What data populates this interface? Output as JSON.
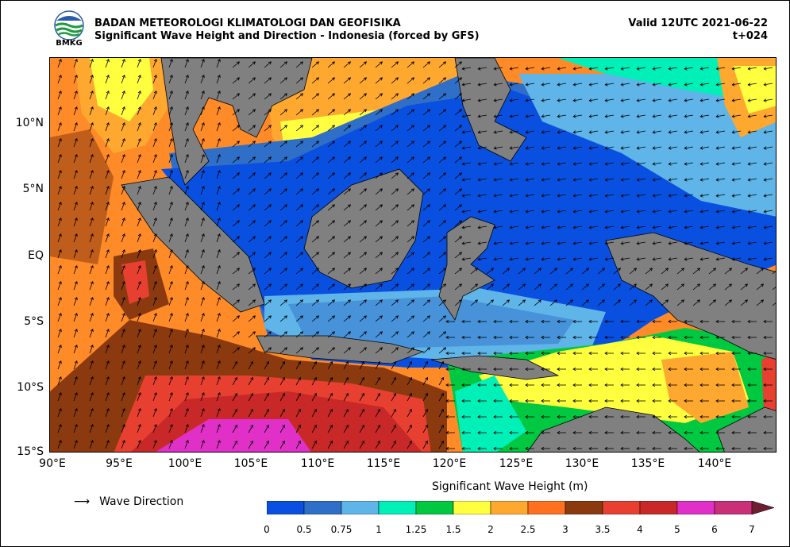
{
  "header": {
    "logo_text": "BMKG",
    "title_line1": "BADAN METEOROLOGI KLIMATOLOGI DAN GEOFISIKA",
    "title_line2": "Significant Wave Height and Direction - Indonesia (forced by GFS)",
    "valid": "Valid 12UTC 2021-06-22",
    "forecast_step": "t+024"
  },
  "map": {
    "lon_range": [
      90,
      145
    ],
    "lat_range": [
      -15,
      15
    ],
    "y_ticks": [
      "10°N",
      "5°N",
      "EQ",
      "5°S",
      "10°S",
      "15°S"
    ],
    "y_tick_values": [
      10,
      5,
      0,
      -5,
      -10,
      -15
    ],
    "x_ticks": [
      "90°E",
      "95°E",
      "100°E",
      "105°E",
      "110°E",
      "115°E",
      "120°E",
      "125°E",
      "130°E",
      "135°E",
      "140°E"
    ],
    "x_tick_values": [
      90,
      95,
      100,
      105,
      110,
      115,
      120,
      125,
      130,
      135,
      140
    ],
    "land_color": "#808080",
    "arrow_color": "#000000"
  },
  "legend": {
    "direction_label": "Wave Direction",
    "direction_icon": "arrow-right-icon",
    "colorbar_title": "Significant Wave Height (m)",
    "colorbar_labels": [
      "0",
      "0.5",
      "0.75",
      "1",
      "1.25",
      "1.5",
      "2",
      "2.5",
      "3",
      "3.5",
      "4",
      "5",
      "6",
      "7"
    ],
    "colorbar_colors": [
      "#0a50e0",
      "#2f6fc8",
      "#5fb4e8",
      "#00f0b8",
      "#00c840",
      "#ffff40",
      "#ffa830",
      "#ff7020",
      "#8b3a10",
      "#e84030",
      "#c82828",
      "#e030c8",
      "#c83078",
      "#6e1e32"
    ]
  }
}
